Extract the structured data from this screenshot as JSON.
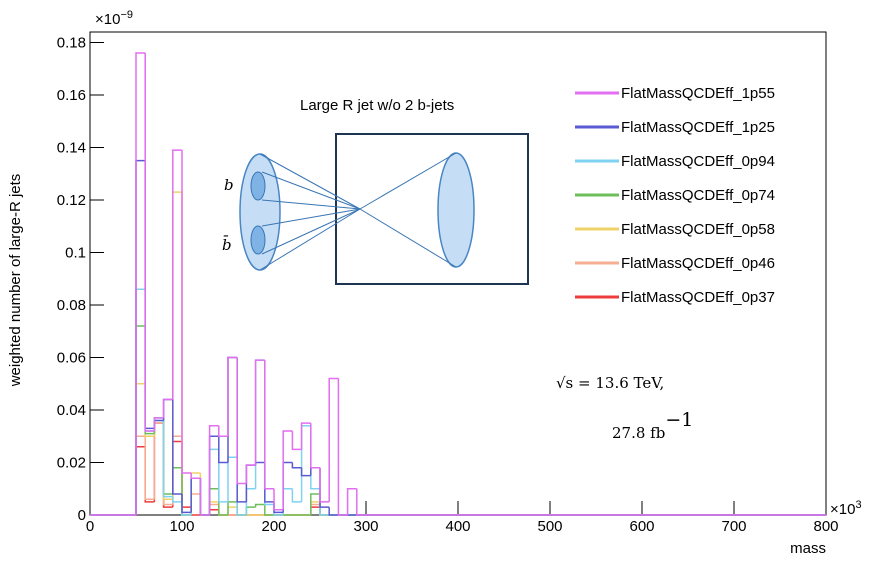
{
  "chart_data": {
    "type": "histogram",
    "ylabel": "weighted number of large-R jets",
    "xlabel": "mass",
    "y_multiplier": {
      "base": "×10",
      "exponent": "−9"
    },
    "x_multiplier": {
      "base": "×10",
      "exponent": "3"
    },
    "bins": [
      0,
      10,
      20,
      30,
      40,
      50,
      60,
      70,
      80,
      90,
      100,
      110,
      120,
      130,
      140,
      150,
      160,
      170,
      180,
      190,
      200,
      210,
      220,
      230,
      240,
      250,
      260,
      270,
      280,
      290,
      300,
      800
    ],
    "xlim": [
      0,
      800
    ],
    "xticks": [
      0,
      100,
      200,
      300,
      400,
      500,
      600,
      700,
      800
    ],
    "ylim": [
      0,
      0.184
    ],
    "yticks": [
      0,
      0.02,
      0.04,
      0.06,
      0.08,
      0.1,
      0.12,
      0.14,
      0.16,
      0.18
    ],
    "legend": "top-right",
    "series": [
      {
        "name": "FlatMassQCDEff_1p55",
        "color": "#e26ef0",
        "values": [
          0,
          0,
          0,
          0,
          0,
          0.176,
          0.032,
          0.037,
          0.044,
          0.139,
          0.016,
          0.014,
          0,
          0.034,
          0.03,
          0.06,
          0.012,
          0.019,
          0.059,
          0.01,
          0.002,
          0.032,
          0.025,
          0.035,
          0.018,
          0.005,
          0.052,
          0,
          0.01,
          0,
          0
        ]
      },
      {
        "name": "FlatMassQCDEff_1p25",
        "color": "#5a5ad2",
        "values": [
          0,
          0,
          0,
          0,
          0,
          0.135,
          0.033,
          0.036,
          0.044,
          0.008,
          0.001,
          0.014,
          0,
          0.03,
          0.02,
          0.06,
          0.005,
          0.019,
          0.02,
          0.005,
          0.001,
          0.02,
          0.018,
          0.015,
          0.018,
          0.003,
          0,
          0,
          0,
          0,
          0
        ]
      },
      {
        "name": "FlatMassQCDEff_0p94",
        "color": "#7fd2f2",
        "values": [
          0,
          0,
          0,
          0,
          0,
          0.086,
          0.032,
          0.036,
          0.007,
          0.005,
          0,
          0.014,
          0,
          0.025,
          0.005,
          0.022,
          0,
          0.01,
          0.059,
          0.004,
          0,
          0.01,
          0.005,
          0.034,
          0.01,
          0,
          0,
          0,
          0,
          0,
          0
        ]
      },
      {
        "name": "FlatMassQCDEff_0p74",
        "color": "#6cbf5a",
        "values": [
          0,
          0,
          0,
          0,
          0,
          0.072,
          0.031,
          0.037,
          0.008,
          0.018,
          0,
          0.014,
          0,
          0.01,
          0,
          0.005,
          0,
          0.003,
          0.004,
          0,
          0,
          0,
          0,
          0,
          0.008,
          0,
          0,
          0,
          0,
          0,
          0
        ]
      },
      {
        "name": "FlatMassQCDEff_0p58",
        "color": "#efd268",
        "values": [
          0,
          0,
          0,
          0,
          0,
          0.05,
          0.03,
          0.036,
          0.006,
          0.123,
          0,
          0.016,
          0,
          0.005,
          0,
          0.003,
          0,
          0,
          0,
          0,
          0,
          0,
          0,
          0,
          0.005,
          0,
          0,
          0,
          0,
          0,
          0
        ]
      },
      {
        "name": "FlatMassQCDEff_0p46",
        "color": "#f6ad92",
        "values": [
          0,
          0,
          0,
          0,
          0,
          0.03,
          0.006,
          0.035,
          0.004,
          0.03,
          0,
          0.008,
          0,
          0.004,
          0,
          0,
          0,
          0,
          0,
          0,
          0,
          0,
          0,
          0,
          0.004,
          0,
          0,
          0,
          0,
          0,
          0
        ]
      },
      {
        "name": "FlatMassQCDEff_0p37",
        "color": "#ee3b3b",
        "values": [
          0,
          0,
          0,
          0,
          0,
          0.026,
          0.005,
          0.035,
          0.003,
          0.028,
          0.003,
          0,
          0,
          0.002,
          0,
          0,
          0,
          0,
          0,
          0,
          0,
          0,
          0,
          0,
          0.003,
          0,
          0,
          0,
          0,
          0,
          0
        ]
      }
    ],
    "annotations": {
      "diagram_title": "Large R jet w/o 2 b-jets",
      "b": "b",
      "bbar": "b̄",
      "energy": "√s = 13.6 TeV,",
      "lumi": {
        "base": "27.8 fb",
        "exponent": "−1"
      }
    }
  }
}
